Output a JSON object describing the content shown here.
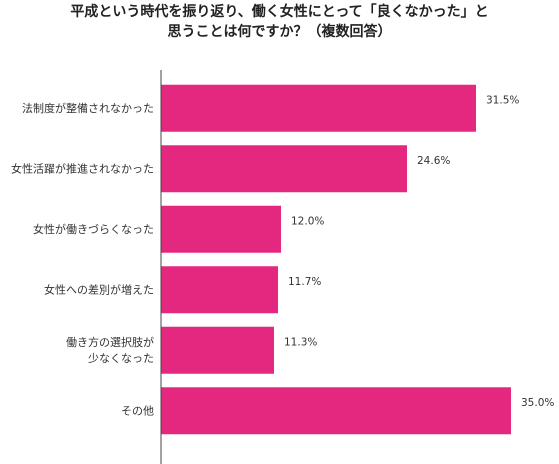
{
  "chart_data": {
    "type": "bar",
    "orientation": "horizontal",
    "title_lines": [
      "平成という時代を振り返り、働く女性にとって「良くなかった」と",
      "思うことは何ですか？（複数回答）"
    ],
    "categories": [
      [
        "法制度が整備されなかった"
      ],
      [
        "女性活躍が推進されなかった"
      ],
      [
        "女性が働きづらくなった"
      ],
      [
        "女性への差別が増えた"
      ],
      [
        "働き方の選択肢が",
        "少なくなった"
      ],
      [
        "その他"
      ]
    ],
    "values": [
      31.5,
      24.6,
      12.0,
      11.7,
      11.3,
      35.0
    ],
    "value_labels": [
      "31.5%",
      "24.6%",
      "12.0%",
      "11.7%",
      "11.3%",
      "35.0%"
    ],
    "unit": "%",
    "xlim": [
      0,
      36.5
    ],
    "grid": false,
    "legend": "none",
    "bar_color": "#e5287f",
    "axis_color": "#444444"
  }
}
